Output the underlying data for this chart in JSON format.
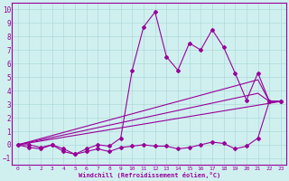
{
  "xlabel": "Windchill (Refroidissement éolien,°C)",
  "xlim": [
    -0.5,
    23.5
  ],
  "ylim": [
    -1.5,
    10.5
  ],
  "xticks": [
    0,
    1,
    2,
    3,
    4,
    5,
    6,
    7,
    8,
    9,
    10,
    11,
    12,
    13,
    14,
    15,
    16,
    17,
    18,
    19,
    20,
    21,
    22,
    23
  ],
  "yticks": [
    -1,
    0,
    1,
    2,
    3,
    4,
    5,
    6,
    7,
    8,
    9,
    10
  ],
  "bg_color": "#d0f0f0",
  "line_color": "#990099",
  "grid_color": "#b0d8d8",
  "series_main_x": [
    0,
    1,
    2,
    3,
    4,
    5,
    6,
    7,
    8,
    9,
    10,
    11,
    12,
    13,
    14,
    15,
    16,
    17,
    18,
    19,
    20,
    21,
    22,
    23
  ],
  "series_main_y": [
    0.0,
    0.0,
    -0.2,
    0.0,
    -0.3,
    -0.7,
    -0.3,
    0.0,
    -0.1,
    0.5,
    5.5,
    8.7,
    9.8,
    6.5,
    5.5,
    7.5,
    7.0,
    8.5,
    7.2,
    5.3,
    3.3,
    5.3,
    3.2,
    3.2
  ],
  "series_low_x": [
    0,
    1,
    2,
    3,
    4,
    5,
    6,
    7,
    8,
    9,
    10,
    11,
    12,
    13,
    14,
    15,
    16,
    17,
    18,
    19,
    20,
    21,
    22,
    23
  ],
  "series_low_y": [
    0.0,
    -0.2,
    -0.3,
    0.0,
    -0.5,
    -0.7,
    -0.5,
    -0.3,
    -0.5,
    -0.2,
    -0.1,
    0.0,
    -0.1,
    -0.1,
    -0.3,
    -0.2,
    0.0,
    0.2,
    0.1,
    -0.3,
    -0.1,
    0.5,
    3.2,
    3.2
  ],
  "line1_x": [
    0,
    23
  ],
  "line1_y": [
    0.0,
    3.2
  ],
  "line2_x": [
    0,
    21,
    22,
    23
  ],
  "line2_y": [
    0.0,
    4.8,
    3.2,
    3.2
  ],
  "line3_x": [
    0,
    21,
    22,
    23
  ],
  "line3_y": [
    0.0,
    3.8,
    3.2,
    3.2
  ]
}
